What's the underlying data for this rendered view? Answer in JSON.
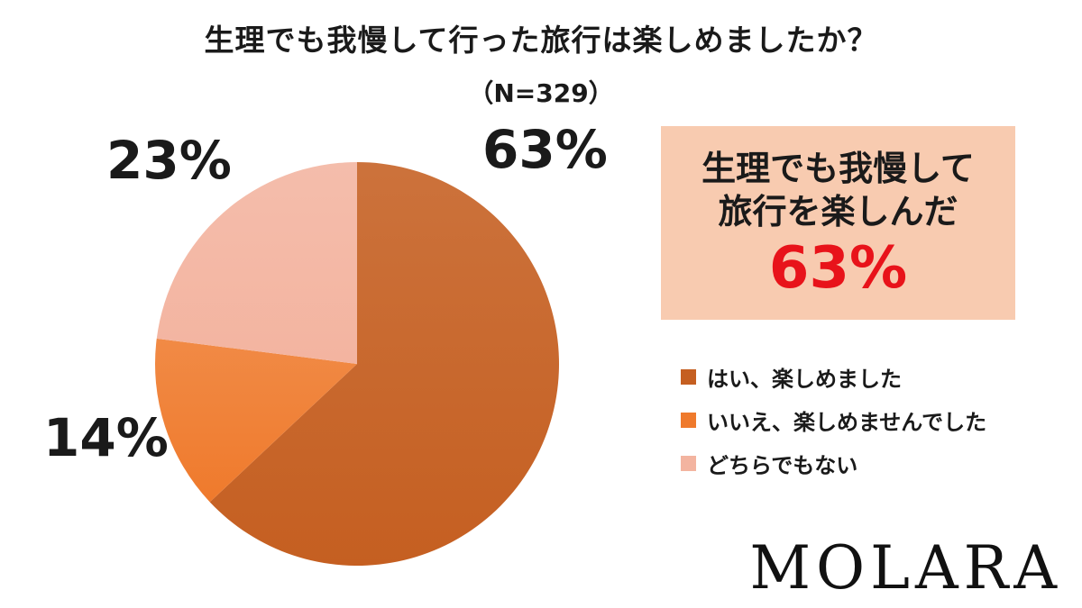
{
  "chart_data": {
    "type": "pie",
    "title": "生理でも我慢して行った旅行は楽しめましたか？",
    "subtitle": "（N=329）",
    "sample_size": 329,
    "categories": [
      "はい、楽しめました",
      "いいえ、楽しめませんでした",
      "どちらでもない"
    ],
    "values": [
      63,
      14,
      23
    ],
    "value_labels": [
      "63%",
      "14%",
      "23%"
    ],
    "colors": [
      "#c55f21",
      "#ef7a2c",
      "#f3b4a0"
    ],
    "start": "12 o'clock",
    "direction": "clockwise",
    "legend_position": "right"
  },
  "highlight": {
    "line1": "生理でも我慢して",
    "line2": "旅行を楽しんだ",
    "value": "63%",
    "background": "#f8cbb0",
    "value_color": "#e8131a"
  },
  "logo": "MOLARA"
}
